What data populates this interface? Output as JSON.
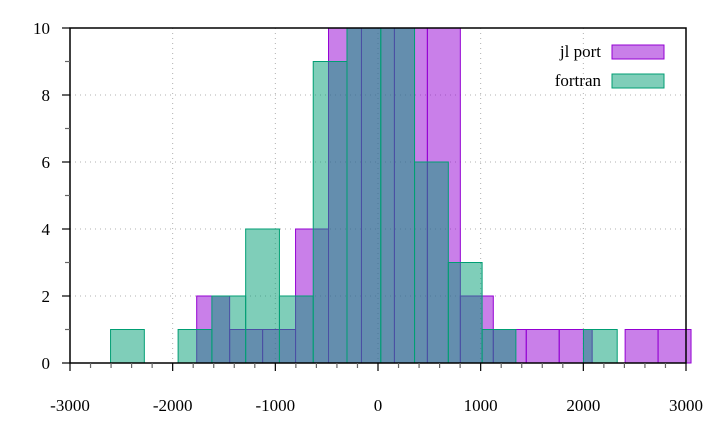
{
  "chart_data": {
    "type": "bar",
    "subtype": "histogram",
    "title": "",
    "xlabel": "",
    "ylabel": "",
    "xlim": [
      -3000,
      3000
    ],
    "ylim": [
      0,
      10
    ],
    "xticks": [
      "-3000",
      "-2000",
      "-1000",
      "0",
      "1000",
      "2000",
      "3000"
    ],
    "yticks": [
      "0",
      "2",
      "4",
      "6",
      "8",
      "10"
    ],
    "grid": true,
    "legend_position": "top-right",
    "series": [
      {
        "name": "jl port",
        "fill": "#9400d3",
        "stroke": "#9400d3",
        "bin_start": -1766,
        "bin_width": 321,
        "values": [
          2,
          1,
          1,
          4,
          10,
          10,
          10,
          10,
          2,
          1,
          1,
          1,
          0,
          1,
          1
        ]
      },
      {
        "name": "fortran",
        "fill": "#009e73",
        "stroke": "#009e73",
        "bin_start": -2605,
        "bin_width": 329,
        "values": [
          1,
          0,
          1,
          2,
          4,
          2,
          9,
          10,
          10,
          6,
          3,
          1,
          0,
          0,
          1
        ]
      }
    ]
  }
}
